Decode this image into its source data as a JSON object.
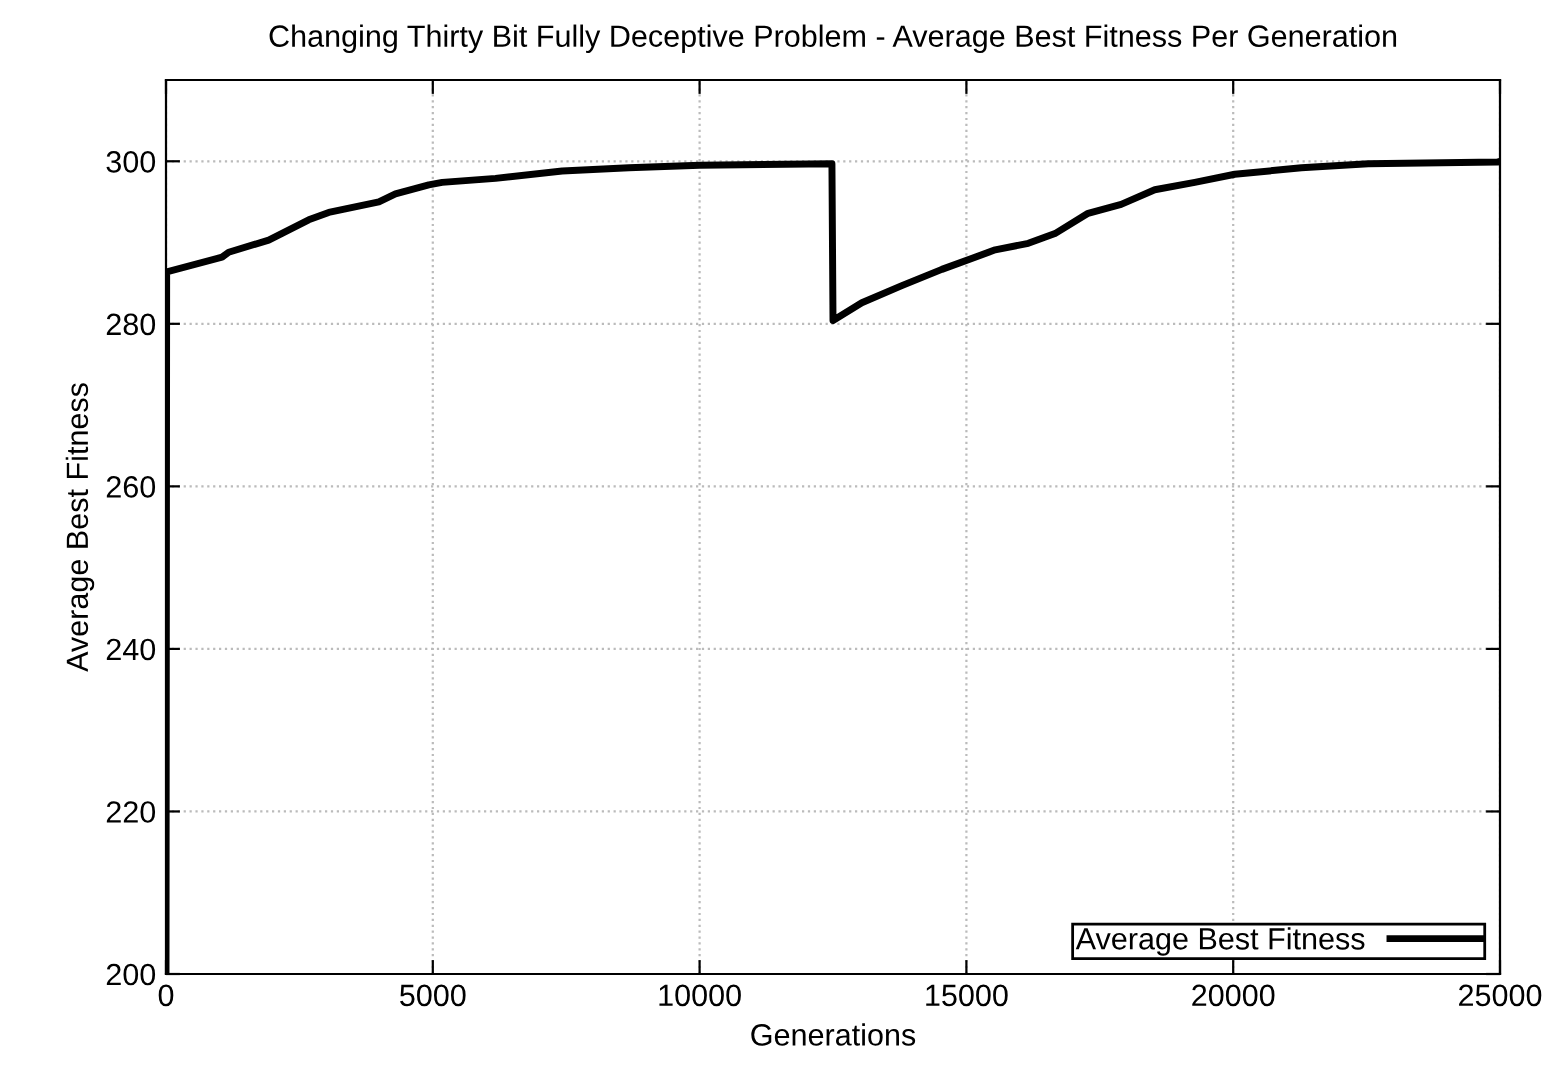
{
  "chart_data": {
    "type": "line",
    "title": "Changing Thirty Bit Fully Deceptive Problem - Average Best Fitness Per Generation",
    "xlabel": "Generations",
    "ylabel": "Average Best Fitness",
    "xlim": [
      0,
      25000
    ],
    "ylim": [
      200,
      310
    ],
    "xticks": [
      0,
      5000,
      10000,
      15000,
      20000,
      25000
    ],
    "yticks": [
      200,
      220,
      240,
      260,
      280,
      300
    ],
    "grid": true,
    "legend": "bottom right",
    "marker": "none",
    "line_style": "solid",
    "series": [
      {
        "name": "Average Best Fitness",
        "color": "#000000",
        "x": [
          0,
          12,
          1050,
          1175,
          1925,
          2675,
          3050,
          3990,
          4300,
          4925,
          5175,
          6175,
          7425,
          8675,
          10000,
          12480,
          12500,
          13040,
          13790,
          14540,
          15540,
          16160,
          16660,
          17280,
          17900,
          18530,
          19280,
          20030,
          21280,
          22530,
          24950,
          25000
        ],
        "values": [
          200,
          286.4,
          288.2,
          288.8,
          290.3,
          292.8,
          293.7,
          295.0,
          296.0,
          297.1,
          297.4,
          297.9,
          298.8,
          299.2,
          299.5,
          299.7,
          280.4,
          282.6,
          284.7,
          286.7,
          289.1,
          289.9,
          291.1,
          293.6,
          294.7,
          296.5,
          297.4,
          298.4,
          299.2,
          299.7,
          299.9,
          300
        ]
      }
    ]
  }
}
